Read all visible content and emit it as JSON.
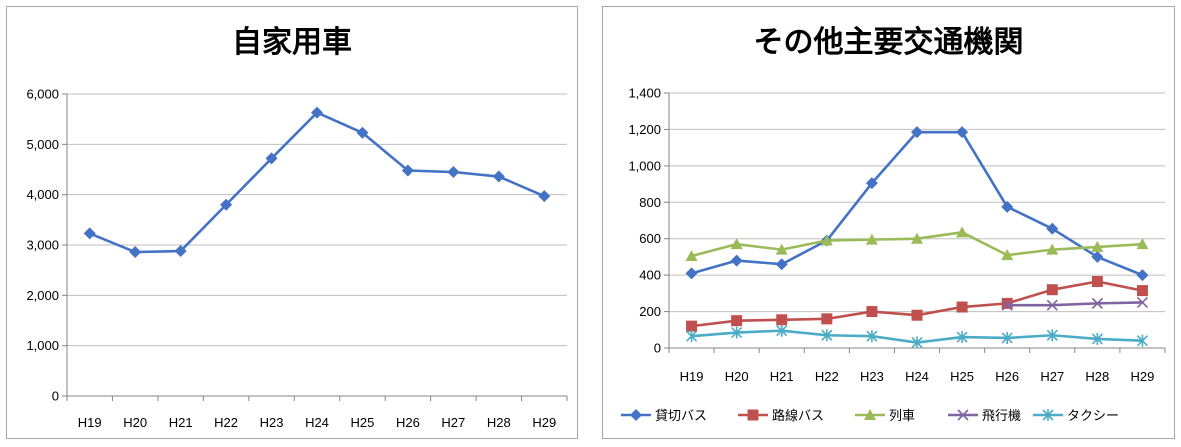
{
  "chart_data": [
    {
      "type": "line",
      "title": "自家用車",
      "categories": [
        "H19",
        "H20",
        "H21",
        "H22",
        "H23",
        "H24",
        "H25",
        "H26",
        "H27",
        "H28",
        "H29"
      ],
      "yticks": [
        "0",
        "1,000",
        "2,000",
        "3,000",
        "4,000",
        "5,000",
        "6,000"
      ],
      "ylim": [
        0,
        6000
      ],
      "grid": true,
      "legend": "none",
      "series": [
        {
          "name": "",
          "color": "#4472c4",
          "marker": "diamond",
          "values": [
            3230,
            2860,
            2880,
            3800,
            4720,
            5630,
            5230,
            4480,
            4450,
            4360,
            3970
          ]
        }
      ]
    },
    {
      "type": "line",
      "title": "その他主要交通機関",
      "categories": [
        "H19",
        "H20",
        "H21",
        "H22",
        "H23",
        "H24",
        "H25",
        "H26",
        "H27",
        "H28",
        "H29"
      ],
      "yticks": [
        "0",
        "200",
        "400",
        "600",
        "800",
        "1,000",
        "1,200",
        "1,400"
      ],
      "ylim": [
        0,
        1400
      ],
      "grid": true,
      "legend": "bottom",
      "series": [
        {
          "name": "貸切バス",
          "color": "#4472c4",
          "marker": "diamond",
          "values": [
            410,
            480,
            460,
            590,
            905,
            1185,
            1185,
            775,
            655,
            500,
            400
          ]
        },
        {
          "name": "路線バス",
          "color": "#c0504d",
          "marker": "square",
          "values": [
            120,
            150,
            155,
            160,
            200,
            180,
            225,
            245,
            320,
            365,
            315
          ]
        },
        {
          "name": "列車",
          "color": "#9bbb59",
          "marker": "triangle",
          "values": [
            505,
            570,
            540,
            590,
            595,
            600,
            635,
            510,
            540,
            555,
            570
          ]
        },
        {
          "name": "飛行機",
          "color": "#8064a2",
          "marker": "x",
          "values": [
            null,
            null,
            null,
            null,
            null,
            null,
            null,
            235,
            235,
            245,
            250
          ]
        },
        {
          "name": "タクシー",
          "color": "#4bacc6",
          "marker": "star",
          "values": [
            65,
            85,
            95,
            70,
            65,
            30,
            60,
            55,
            70,
            50,
            40
          ]
        }
      ]
    }
  ]
}
